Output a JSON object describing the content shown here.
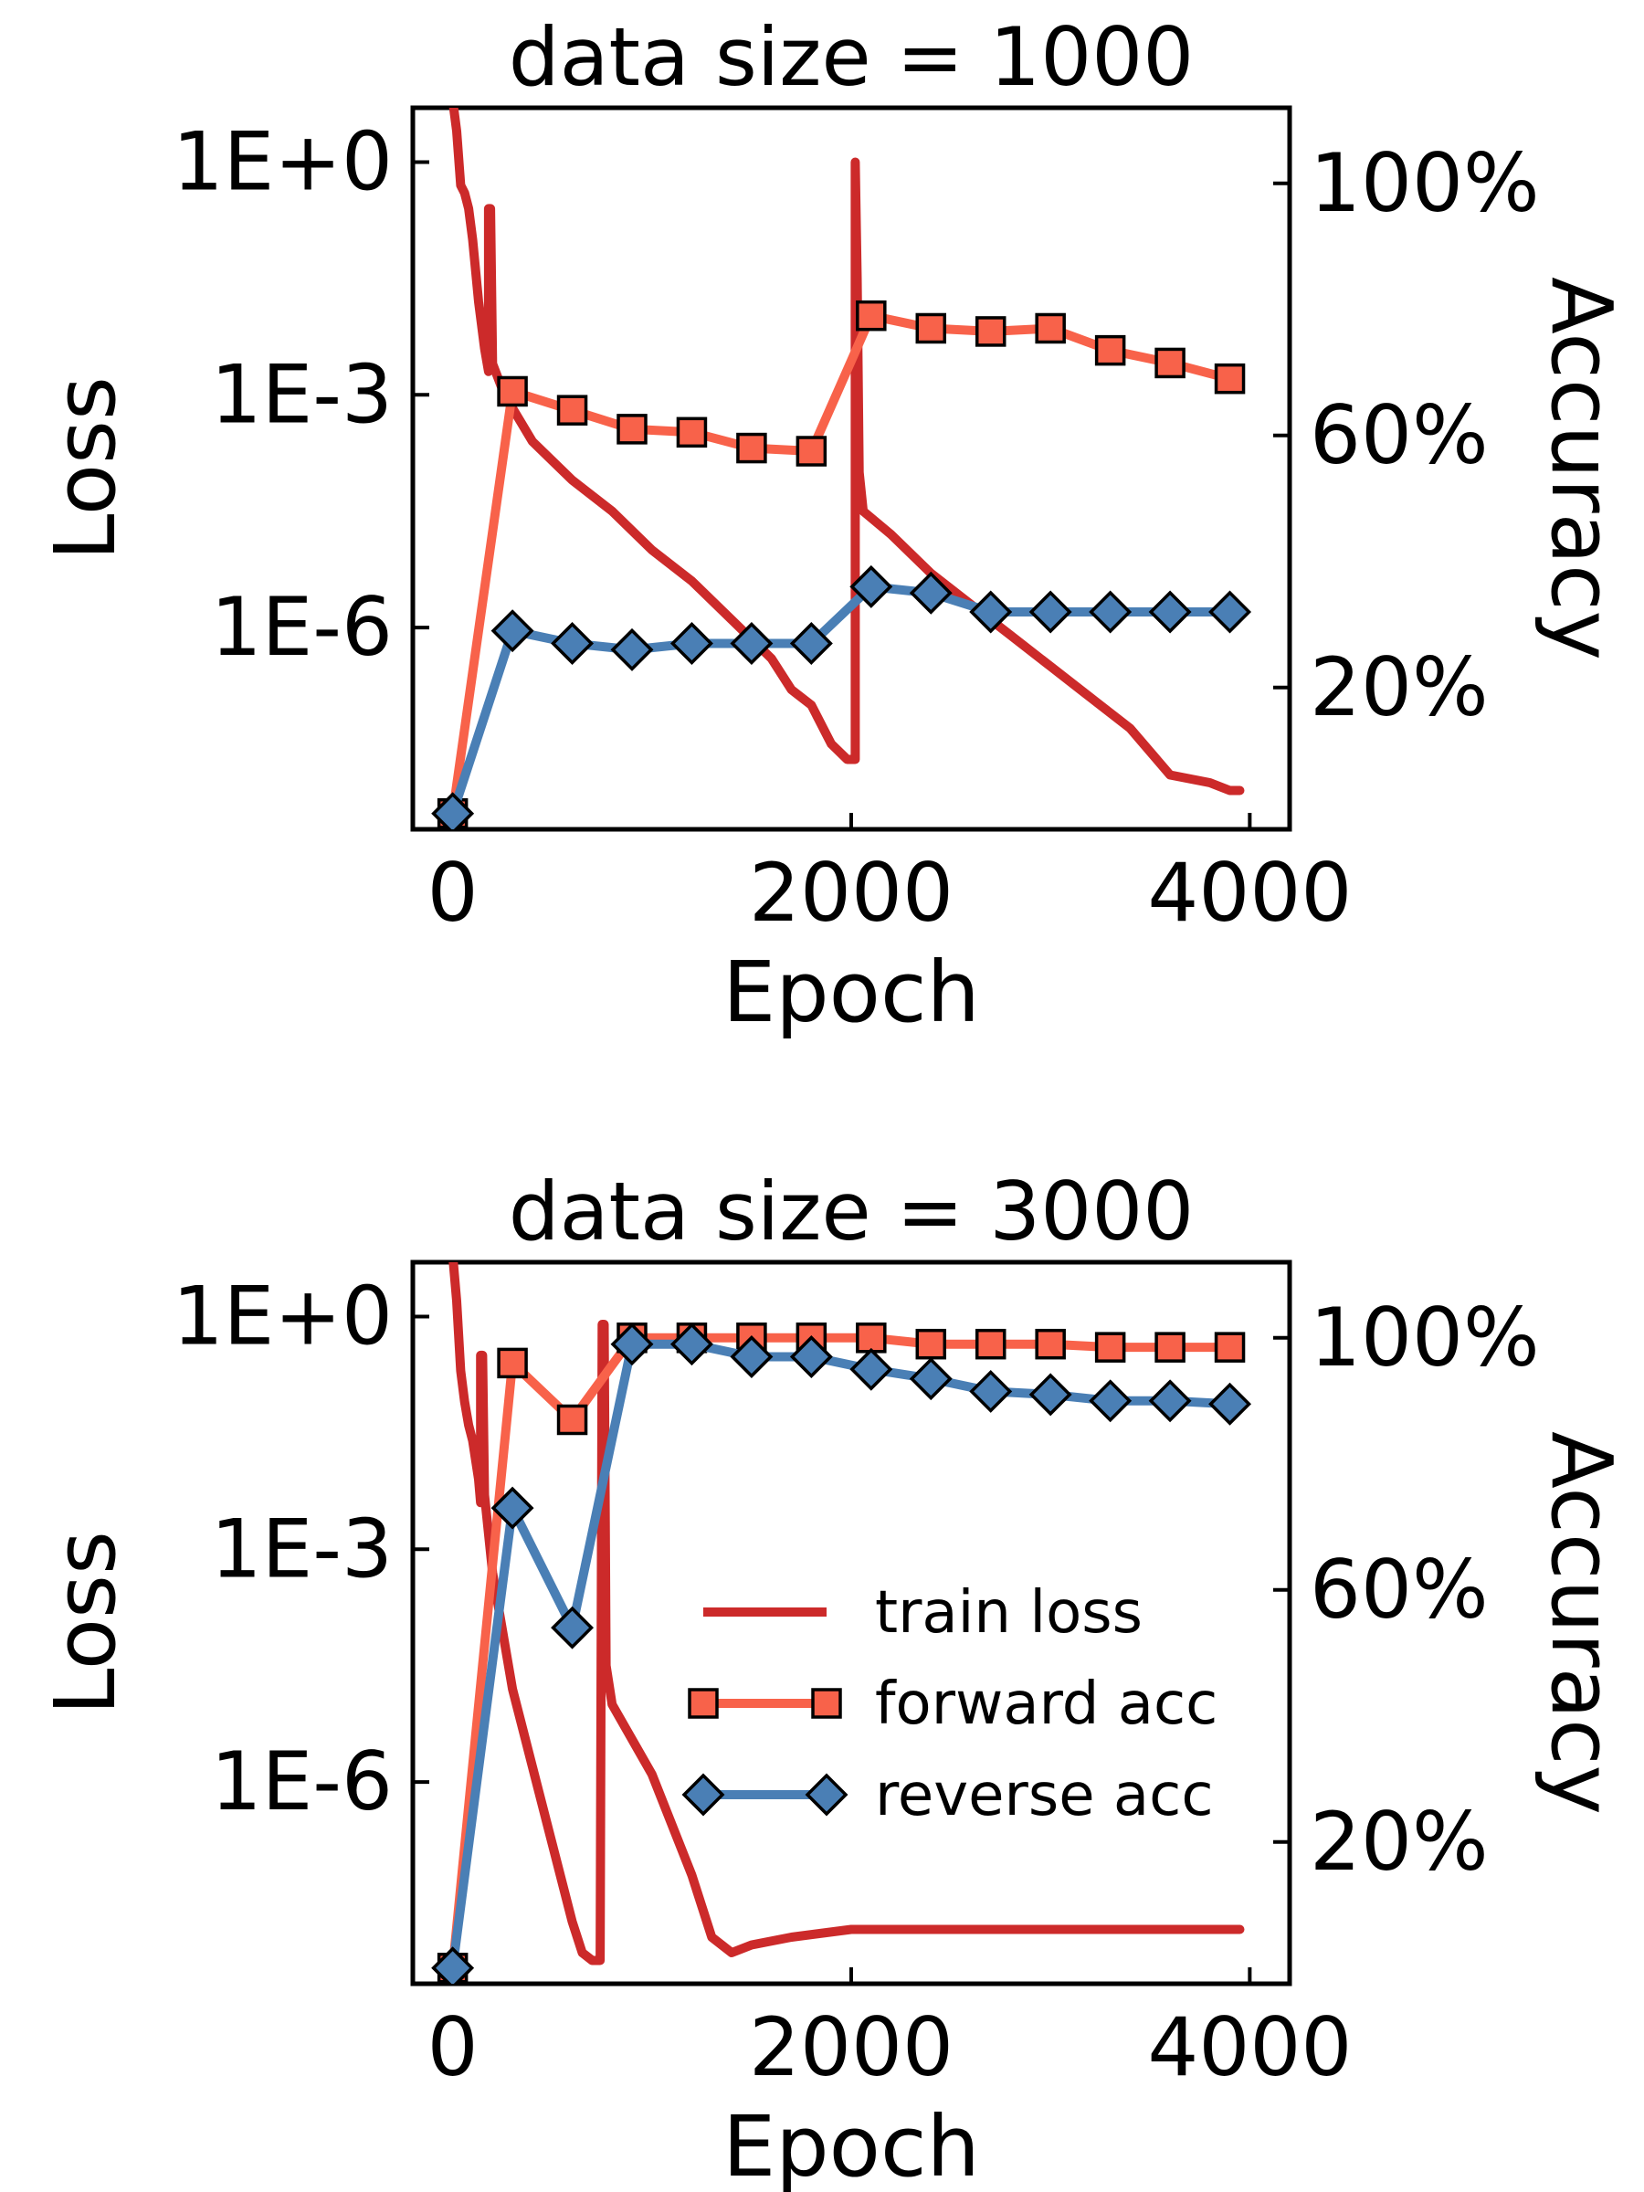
{
  "chart_data": [
    {
      "type": "line",
      "title": "data size = 1000",
      "xlabel": "Epoch",
      "ylabel": "Loss",
      "y2label": "Accuracy",
      "xlim": [
        -200,
        4200
      ],
      "xticks": [
        0,
        2000,
        4000
      ],
      "xtick_labels": [
        "0",
        "2000",
        "4000"
      ],
      "y_scale": "log",
      "ylim_log10": [
        -8.6,
        0.7
      ],
      "yticks_log10": [
        0,
        -3,
        -6
      ],
      "ytick_labels": [
        "1E+0",
        "1E-3",
        "1E-6"
      ],
      "y2lim": [
        -2.5,
        112
      ],
      "y2ticks": [
        100,
        60,
        20
      ],
      "y2tick_labels": [
        "100%",
        "60%",
        "20%"
      ],
      "grid": false,
      "legend": null,
      "series": [
        {
          "name": "train loss",
          "axis": "left",
          "color": "#cc2a2a",
          "marker": "none",
          "points_log10": [
            [
              0,
              0.8
            ],
            [
              20,
              0.4
            ],
            [
              40,
              -0.3
            ],
            [
              60,
              -0.4
            ],
            [
              80,
              -0.6
            ],
            [
              100,
              -1.0
            ],
            [
              130,
              -1.8
            ],
            [
              160,
              -2.4
            ],
            [
              180,
              -2.7
            ],
            [
              180,
              -0.6
            ],
            [
              190,
              -0.6
            ],
            [
              200,
              -2.6
            ],
            [
              260,
              -3.0
            ],
            [
              400,
              -3.6
            ],
            [
              600,
              -4.1
            ],
            [
              800,
              -4.5
            ],
            [
              1000,
              -5.0
            ],
            [
              1200,
              -5.4
            ],
            [
              1400,
              -5.9
            ],
            [
              1600,
              -6.4
            ],
            [
              1700,
              -6.8
            ],
            [
              1800,
              -7.0
            ],
            [
              1900,
              -7.5
            ],
            [
              1980,
              -7.7
            ],
            [
              2020,
              -7.7
            ],
            [
              2020,
              0.0
            ],
            [
              2030,
              -1.5
            ],
            [
              2040,
              -4.0
            ],
            [
              2060,
              -4.5
            ],
            [
              2200,
              -4.8
            ],
            [
              2400,
              -5.3
            ],
            [
              2600,
              -5.7
            ],
            [
              2800,
              -6.1
            ],
            [
              3000,
              -6.5
            ],
            [
              3200,
              -6.9
            ],
            [
              3400,
              -7.3
            ],
            [
              3600,
              -7.9
            ],
            [
              3800,
              -8.0
            ],
            [
              3900,
              -8.1
            ],
            [
              3950,
              -8.1
            ]
          ]
        },
        {
          "name": "forward acc",
          "axis": "right",
          "color": "#f8624a",
          "marker": "square",
          "x": [
            0,
            300,
            600,
            900,
            1200,
            1500,
            1800,
            2100,
            2400,
            2700,
            3000,
            3300,
            3600,
            3900
          ],
          "y": [
            0,
            67,
            64,
            61,
            60.5,
            58,
            57.5,
            79,
            77,
            76.5,
            77,
            73.5,
            71.5,
            69
          ]
        },
        {
          "name": "reverse acc",
          "axis": "right",
          "color": "#4a7fb5",
          "marker": "diamond",
          "x": [
            0,
            300,
            600,
            900,
            1200,
            1500,
            1800,
            2100,
            2400,
            2700,
            3000,
            3300,
            3600,
            3900
          ],
          "y": [
            0,
            29,
            27,
            26,
            27,
            27,
            27,
            36,
            35,
            32,
            32,
            32,
            32,
            32
          ]
        }
      ]
    },
    {
      "type": "line",
      "title": "data size = 3000",
      "xlabel": "Epoch",
      "ylabel": "Loss",
      "y2label": "Accuracy",
      "xlim": [
        -200,
        4200
      ],
      "xticks": [
        0,
        2000,
        4000
      ],
      "xtick_labels": [
        "0",
        "2000",
        "4000"
      ],
      "y_scale": "log",
      "ylim_log10": [
        -8.6,
        0.7
      ],
      "yticks_log10": [
        0,
        -3,
        -6
      ],
      "ytick_labels": [
        "1E+0",
        "1E-3",
        "1E-6"
      ],
      "y2lim": [
        -2.5,
        112
      ],
      "y2ticks": [
        100,
        60,
        20
      ],
      "y2tick_labels": [
        "100%",
        "60%",
        "20%"
      ],
      "grid": false,
      "legend": {
        "position": "center-right",
        "entries": [
          "train loss",
          "forward acc",
          "reverse acc"
        ]
      },
      "series": [
        {
          "name": "train loss",
          "axis": "left",
          "color": "#cc2a2a",
          "marker": "none",
          "points_log10": [
            [
              0,
              0.8
            ],
            [
              20,
              0.2
            ],
            [
              40,
              -0.7
            ],
            [
              60,
              -1.1
            ],
            [
              80,
              -1.4
            ],
            [
              100,
              -1.6
            ],
            [
              130,
              -2.1
            ],
            [
              140,
              -2.4
            ],
            [
              140,
              -0.5
            ],
            [
              150,
              -0.5
            ],
            [
              160,
              -2.3
            ],
            [
              200,
              -3.3
            ],
            [
              300,
              -4.8
            ],
            [
              400,
              -5.8
            ],
            [
              500,
              -6.8
            ],
            [
              600,
              -7.8
            ],
            [
              650,
              -8.2
            ],
            [
              700,
              -8.3
            ],
            [
              740,
              -8.3
            ],
            [
              750,
              -0.1
            ],
            [
              760,
              -0.1
            ],
            [
              770,
              -4.5
            ],
            [
              800,
              -5.0
            ],
            [
              1000,
              -5.9
            ],
            [
              1200,
              -7.2
            ],
            [
              1300,
              -8.0
            ],
            [
              1400,
              -8.2
            ],
            [
              1500,
              -8.1
            ],
            [
              1700,
              -8.0
            ],
            [
              2000,
              -7.9
            ],
            [
              2500,
              -7.9
            ],
            [
              3000,
              -7.9
            ],
            [
              3500,
              -7.9
            ],
            [
              3950,
              -7.9
            ]
          ]
        },
        {
          "name": "forward acc",
          "axis": "right",
          "color": "#f8624a",
          "marker": "square",
          "x": [
            0,
            300,
            600,
            900,
            1200,
            1500,
            1800,
            2100,
            2400,
            2700,
            3000,
            3300,
            3600,
            3900
          ],
          "y": [
            0,
            96,
            87,
            100,
            100,
            100,
            100,
            100,
            99,
            99,
            99,
            98.5,
            98.5,
            98.5
          ]
        },
        {
          "name": "reverse acc",
          "axis": "right",
          "color": "#4a7fb5",
          "marker": "diamond",
          "x": [
            0,
            300,
            600,
            900,
            1200,
            1500,
            1800,
            2100,
            2400,
            2700,
            3000,
            3300,
            3600,
            3900
          ],
          "y": [
            0,
            73,
            54,
            99,
            99,
            97,
            97,
            95,
            93.5,
            91.5,
            91,
            90,
            90,
            89.5
          ]
        }
      ]
    }
  ]
}
